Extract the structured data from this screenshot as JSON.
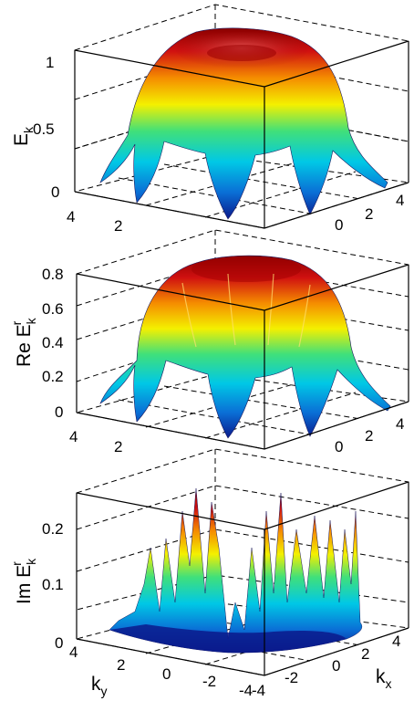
{
  "chart_data": [
    {
      "type": "surface",
      "ylabel": "E",
      "ylabel_sub": "k",
      "zlim": [
        0,
        1.1
      ],
      "z_ticks": [
        "0",
        "0.5",
        "1"
      ],
      "ky_ticks": [
        "4",
        "2"
      ],
      "kx_ticks": [
        "0",
        "2",
        "4"
      ],
      "grid": true,
      "colormap": [
        "#0a1a8c",
        "#0a6fd6",
        "#00c8e6",
        "#40e07a",
        "#f4f000",
        "#f58c00",
        "#d01010",
        "#8a0000"
      ]
    },
    {
      "type": "surface",
      "ylabel": "Re E",
      "ylabel_sub": "k",
      "ylabel_sup": "r",
      "zlim": [
        0,
        0.8
      ],
      "z_ticks": [
        "0",
        "0.2",
        "0.4",
        "0.6",
        "0.8"
      ],
      "ky_ticks": [
        "4",
        "2"
      ],
      "kx_ticks": [
        "0",
        "2",
        "4"
      ],
      "grid": true
    },
    {
      "type": "surface",
      "ylabel": "Im E",
      "ylabel_sub": "k",
      "ylabel_sup": "r",
      "zlim": [
        0,
        0.25
      ],
      "z_ticks": [
        "0",
        "0.1",
        "0.2"
      ],
      "ky_ticks": [
        "4",
        "2",
        "0",
        "-2",
        "-4"
      ],
      "kx_ticks": [
        "-4",
        "-2",
        "0",
        "2",
        "4"
      ],
      "ky_label": "k",
      "ky_label_sub": "y",
      "kx_label": "k",
      "kx_label_sub": "x",
      "grid": true
    }
  ]
}
